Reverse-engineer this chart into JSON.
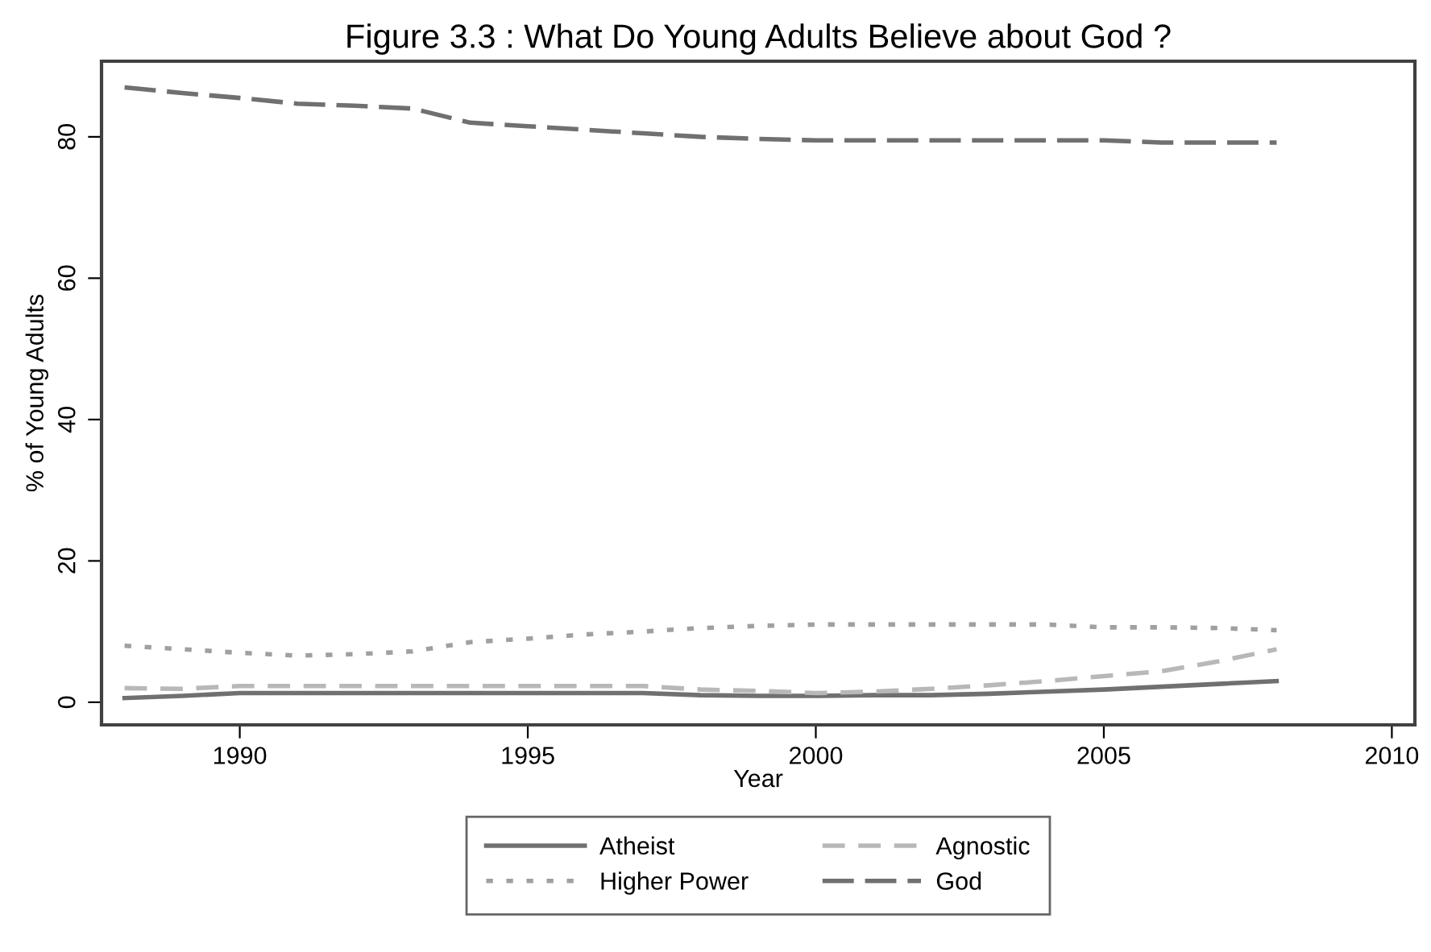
{
  "chart_data": {
    "type": "line",
    "title": "Figure 3.3 : What Do Young Adults Believe about God ?",
    "xlabel": "Year",
    "ylabel": "% of Young Adults",
    "x": [
      1988,
      1989,
      1990,
      1991,
      1992,
      1993,
      1994,
      1995,
      1996,
      1997,
      1998,
      1999,
      2000,
      2001,
      2002,
      2003,
      2004,
      2005,
      2006,
      2007,
      2008
    ],
    "series": [
      {
        "name": "Atheist",
        "color": "#707070",
        "line_style": "solid",
        "values": [
          0.6,
          0.9,
          1.3,
          1.3,
          1.3,
          1.3,
          1.3,
          1.3,
          1.3,
          1.3,
          1.0,
          0.9,
          0.9,
          1.0,
          1.0,
          1.2,
          1.5,
          1.8,
          2.2,
          2.6,
          3.0
        ]
      },
      {
        "name": "Agnostic",
        "color": "#b8b8b8",
        "line_style": "dashed",
        "values": [
          2.0,
          1.9,
          2.3,
          2.3,
          2.3,
          2.3,
          2.3,
          2.3,
          2.3,
          2.3,
          1.8,
          1.6,
          1.3,
          1.5,
          1.9,
          2.4,
          3.0,
          3.7,
          4.4,
          5.8,
          7.5
        ]
      },
      {
        "name": "Higher Power",
        "color": "#a0a0a0",
        "line_style": "dotted",
        "values": [
          8.0,
          7.5,
          7.0,
          6.6,
          6.8,
          7.2,
          8.5,
          9.0,
          9.6,
          10.0,
          10.5,
          10.8,
          11.0,
          11.0,
          11.0,
          11.0,
          11.0,
          10.6,
          10.6,
          10.5,
          10.2
        ]
      },
      {
        "name": "God",
        "color": "#707070",
        "line_style": "longdash",
        "values": [
          87,
          86.2,
          85.5,
          84.7,
          84.4,
          84,
          82,
          81.5,
          81,
          80.5,
          80,
          79.7,
          79.5,
          79.5,
          79.5,
          79.5,
          79.5,
          79.5,
          79.2,
          79.2,
          79.2
        ]
      }
    ],
    "xlim": [
      1987.6,
      2010.4
    ],
    "ylim": [
      -3.2,
      90.7
    ],
    "xticks": [
      1990,
      1995,
      2000,
      2005,
      2010
    ],
    "yticks": [
      0,
      20,
      40,
      60,
      80
    ],
    "grid": false,
    "legend": "bottom",
    "marker": "none"
  }
}
